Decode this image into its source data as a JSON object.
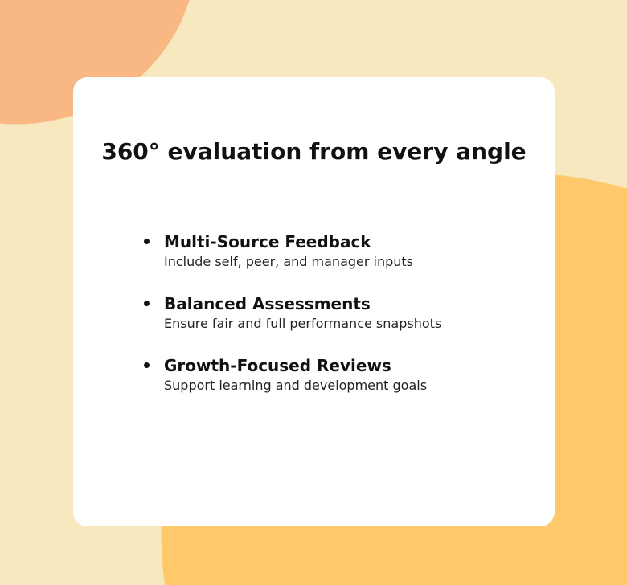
{
  "title": "360° evaluation from every angle",
  "items": [
    {
      "title": "Multi-Source Feedback",
      "desc": "Include self, peer, and manager inputs"
    },
    {
      "title": "Balanced Assessments",
      "desc": "Ensure fair and full performance snapshots"
    },
    {
      "title": "Growth-Focused Reviews",
      "desc": "Support learning and development goals"
    }
  ],
  "colors": {
    "background": "#f8e8bf",
    "blob_top": "#f9b783",
    "blob_bottom": "#fec86b"
  }
}
